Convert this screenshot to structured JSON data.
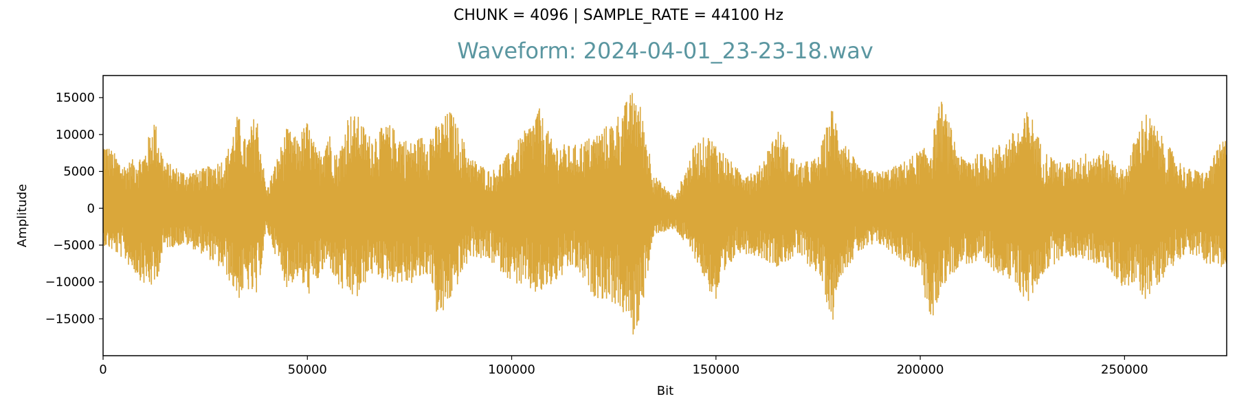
{
  "suptitle": "CHUNK = 4096 | SAMPLE_RATE = 44100 Hz",
  "chart_data": {
    "type": "line",
    "title": "Waveform: 2024-04-01_23-23-18.wav",
    "xlabel": "Bit",
    "ylabel": "Amplitude",
    "xlim": [
      0,
      275000
    ],
    "ylim": [
      -20000,
      18000
    ],
    "xticks": [
      {
        "value": 0,
        "label": "0"
      },
      {
        "value": 50000,
        "label": "50000"
      },
      {
        "value": 100000,
        "label": "100000"
      },
      {
        "value": 150000,
        "label": "150000"
      },
      {
        "value": 200000,
        "label": "200000"
      },
      {
        "value": 250000,
        "label": "250000"
      }
    ],
    "yticks": [
      {
        "value": -15000,
        "label": "−15000"
      },
      {
        "value": -10000,
        "label": "−10000"
      },
      {
        "value": -5000,
        "label": "−5000"
      },
      {
        "value": 0,
        "label": "0"
      },
      {
        "value": 5000,
        "label": "5000"
      },
      {
        "value": 10000,
        "label": "10000"
      },
      {
        "value": 15000,
        "label": "15000"
      }
    ],
    "grid": false,
    "legend": "none",
    "colors": {
      "line": "#DAA73A",
      "title": "#5A96A0"
    },
    "series": [
      {
        "x": [
          0,
          5000,
          10000,
          12500,
          15000,
          20000,
          25000,
          30000,
          33000,
          35000,
          37500,
          40000,
          45000,
          47500,
          50000,
          52500,
          55000,
          57500,
          60000,
          62500,
          65000,
          70000,
          75000,
          80000,
          82000,
          85000,
          90000,
          95000,
          100000,
          105000,
          106500,
          110000,
          115000,
          120000,
          125000,
          128000,
          130000,
          131500,
          135000,
          140000,
          145000,
          148000,
          150000,
          155000,
          160000,
          165000,
          170000,
          175000,
          178500,
          180000,
          185000,
          190000,
          195000,
          200000,
          202500,
          205000,
          210000,
          215000,
          220000,
          225000,
          226500,
          230000,
          235000,
          240000,
          245000,
          250000,
          252500,
          255000,
          260000,
          265000,
          270000,
          274000
        ],
        "ymax": [
          9500,
          6000,
          7500,
          12500,
          6500,
          5000,
          5500,
          7000,
          13000,
          9000,
          13500,
          2500,
          11000,
          9500,
          12000,
          7500,
          11000,
          7000,
          13000,
          12500,
          10000,
          11500,
          9000,
          10500,
          11500,
          13500,
          7000,
          5000,
          8000,
          12000,
          14000,
          9000,
          8500,
          10000,
          12000,
          14500,
          16500,
          14000,
          4500,
          1500,
          9000,
          10000,
          9000,
          5500,
          5000,
          11000,
          6000,
          7000,
          14000,
          11000,
          5500,
          5000,
          6000,
          8000,
          8500,
          15000,
          7000,
          7500,
          9000,
          11500,
          14000,
          8000,
          6000,
          7500,
          8000,
          5000,
          9500,
          13500,
          9000,
          5500,
          5000,
          9500
        ],
        "ymin": [
          -5000,
          -7000,
          -10500,
          -11000,
          -5500,
          -5000,
          -6500,
          -9000,
          -12500,
          -11000,
          -12500,
          -3000,
          -11000,
          -9500,
          -12000,
          -10000,
          -7500,
          -11000,
          -12000,
          -12500,
          -9000,
          -10000,
          -10500,
          -9000,
          -16000,
          -12500,
          -6500,
          -7500,
          -10000,
          -11500,
          -12000,
          -10500,
          -8000,
          -12000,
          -13000,
          -15000,
          -18000,
          -14500,
          -3500,
          -3000,
          -7000,
          -11000,
          -13000,
          -6000,
          -6500,
          -8000,
          -6500,
          -9000,
          -15500,
          -9500,
          -6000,
          -5000,
          -7000,
          -9000,
          -16500,
          -11000,
          -7500,
          -8000,
          -9000,
          -12000,
          -13000,
          -9000,
          -6500,
          -7000,
          -8000,
          -11000,
          -10500,
          -12500,
          -9000,
          -6000,
          -7500,
          -8500
        ]
      }
    ]
  }
}
